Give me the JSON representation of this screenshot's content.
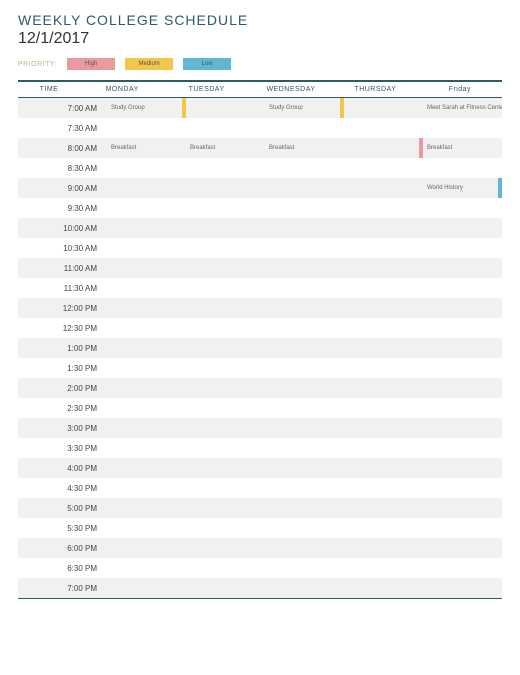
{
  "header": {
    "title": "WEEKLY COLLEGE SCHEDULE",
    "date": "12/1/2017",
    "legend_label": "PRIORITY:"
  },
  "colors": {
    "accent": "#2e5a6b",
    "high": "#e99aa0",
    "medium": "#f2c64b",
    "low": "#5fb7d4",
    "row_alt": "#f1f1f1",
    "background": "#ffffff"
  },
  "legend": {
    "high": "High",
    "medium": "Medium",
    "low": "Low"
  },
  "schedule": {
    "columns": [
      "TIME",
      "MONDAY",
      "TUESDAY",
      "WEDNESDAY",
      "THURSDAY",
      "Friday"
    ],
    "time_slots": [
      "7:00 AM",
      "7:30 AM",
      "8:00 AM",
      "8:30 AM",
      "9:00 AM",
      "9:30 AM",
      "10:00 AM",
      "10:30 AM",
      "11:00 AM",
      "11:30 AM",
      "12:00 PM",
      "12:30 PM",
      "1:00 PM",
      "1:30 PM",
      "2:00 PM",
      "2:30 PM",
      "3:00 PM",
      "3:30 PM",
      "4:00 PM",
      "4:30 PM",
      "5:00 PM",
      "5:30 PM",
      "6:00 PM",
      "6:30 PM",
      "7:00 PM"
    ],
    "events": [
      {
        "row": 0,
        "col": 1,
        "label": "Study Group",
        "priority": "medium"
      },
      {
        "row": 0,
        "col": 3,
        "label": "Study Group",
        "priority": "medium"
      },
      {
        "row": 0,
        "col": 5,
        "label": "Meet Sarah at Fitness Center",
        "priority": null
      },
      {
        "row": 2,
        "col": 1,
        "label": "Breakfast",
        "priority": null
      },
      {
        "row": 2,
        "col": 2,
        "label": "Breakfast",
        "priority": null
      },
      {
        "row": 2,
        "col": 3,
        "label": "Breakfast",
        "priority": null
      },
      {
        "row": 2,
        "col": 4,
        "label": "",
        "priority": "high"
      },
      {
        "row": 2,
        "col": 5,
        "label": "Breakfast",
        "priority": null
      },
      {
        "row": 4,
        "col": 5,
        "label": "World History",
        "priority": "low"
      }
    ]
  }
}
